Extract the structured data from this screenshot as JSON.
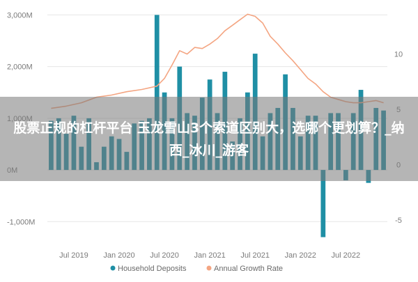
{
  "overlay": {
    "headline": "股票正规的杠杆平台 玉龙雪山3个索道区别大，选哪个更划算？_纳西_冰川_游客"
  },
  "chart_data": {
    "type": "bar+line",
    "title": "",
    "xlabel": "",
    "ylabel_left": "",
    "ylabel_right": "",
    "left_axis": {
      "ylim": [
        -1400,
        3100
      ],
      "ticks": [
        -1000,
        0,
        1000,
        2000,
        3000
      ],
      "tick_labels": [
        "-1,000M",
        "0M",
        "1,000M",
        "2,000M",
        "3,000M"
      ]
    },
    "right_axis": {
      "ylim": [
        -7,
        14
      ],
      "ticks": [
        -5,
        0,
        5,
        10
      ],
      "tick_labels": [
        "-5",
        "0",
        "5",
        "10"
      ]
    },
    "x_axis": {
      "ticks": [
        0,
        6,
        12,
        18,
        24,
        30,
        36
      ],
      "tick_labels": [
        "Jul 2019",
        "Jan 2020",
        "Jul 2020",
        "Jan 2021",
        "Jul 2021",
        "Jan 2022",
        "Jul 2022"
      ]
    },
    "grid": "horizontal",
    "legend_position": "bottom",
    "colors": {
      "bars": "#1f8fa5",
      "line": "#f4a582",
      "grid": "#e6e6e6"
    },
    "series": [
      {
        "name": "Household Deposits",
        "kind": "bar",
        "axis": "left",
        "x": [
          -3,
          -2,
          -1,
          0,
          1,
          2,
          3,
          4,
          5,
          6,
          7,
          8,
          9,
          10,
          11,
          12,
          13,
          14,
          15,
          16,
          17,
          18,
          19,
          20,
          21,
          22,
          23,
          24,
          25,
          26,
          27,
          28,
          29,
          30,
          31,
          32,
          33,
          34,
          35,
          36,
          37,
          38,
          39,
          40,
          41
        ],
        "values": [
          950,
          1000,
          700,
          1050,
          450,
          1000,
          150,
          450,
          650,
          600,
          350,
          900,
          950,
          1000,
          3000,
          1500,
          1000,
          2000,
          1100,
          1050,
          1400,
          1750,
          1100,
          1900,
          550,
          1000,
          1500,
          2250,
          650,
          1100,
          1200,
          1850,
          1200,
          650,
          1050,
          1050,
          -1300,
          1100,
          1100,
          -200,
          1100,
          1550,
          -250,
          1200,
          1150
        ]
      },
      {
        "name": "Annual Growth Rate",
        "kind": "line",
        "axis": "right",
        "x": [
          -3,
          -1,
          1,
          3,
          5,
          7,
          9,
          11,
          12,
          13,
          14,
          15,
          16,
          17,
          18,
          19,
          20,
          21,
          22,
          23,
          24,
          25,
          26,
          27,
          28,
          29,
          30,
          31,
          32,
          33,
          34,
          35,
          36,
          37,
          38,
          39,
          40,
          41
        ],
        "values": [
          5.1,
          5.3,
          5.6,
          6.1,
          6.3,
          6.6,
          6.8,
          7.1,
          7.8,
          9.0,
          10.3,
          10.0,
          10.6,
          10.5,
          10.9,
          11.4,
          12.1,
          12.6,
          13.1,
          13.6,
          13.4,
          12.8,
          11.6,
          10.9,
          10.1,
          9.4,
          8.6,
          7.8,
          7.3,
          6.6,
          6.1,
          5.9,
          5.7,
          5.6,
          5.6,
          5.7,
          5.8,
          5.6
        ]
      }
    ]
  }
}
